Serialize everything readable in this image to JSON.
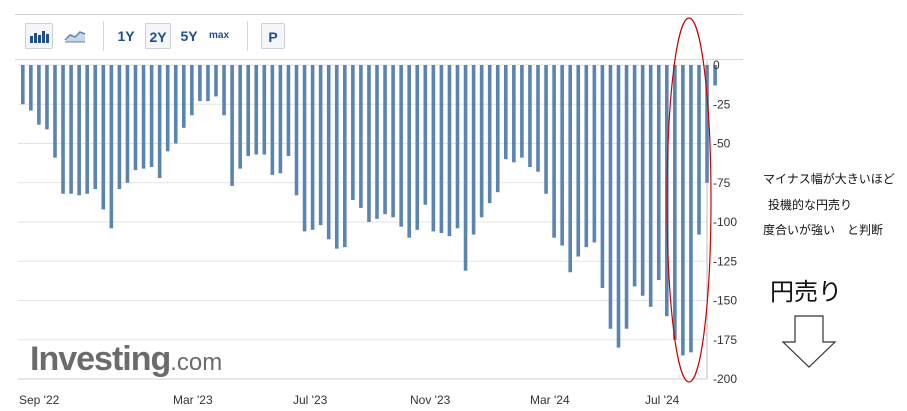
{
  "toolbar": {
    "bar_icon": "bar-chart-icon",
    "line_icon": "area-chart-icon",
    "ranges": [
      "1Y",
      "2Y",
      "5Y",
      "max"
    ],
    "active_range": "2Y",
    "p_button": "P"
  },
  "chart_data": {
    "type": "bar",
    "title": "",
    "xlabel": "",
    "ylabel": "",
    "ylim": [
      -200,
      0
    ],
    "y_ticks": [
      "0",
      "-25",
      "-50",
      "-75",
      "-100",
      "-125",
      "-150",
      "-175",
      "-200"
    ],
    "x_tick_labels": [
      "Sep '22",
      "Mar '23",
      "Jul '23",
      "Nov '23",
      "Mar '24",
      "Jul '24"
    ],
    "bar_color": "#5b84b1",
    "grid": true,
    "values": [
      -25,
      -29,
      -38,
      -41,
      -59,
      -82,
      -82,
      -83,
      -82,
      -79,
      -92,
      -104,
      -79,
      -75,
      -67,
      -66,
      -65,
      -72,
      -55,
      -50,
      -40,
      -32,
      -23,
      -23,
      -20,
      -32,
      -77,
      -66,
      -58,
      -57,
      -57,
      -70,
      -69,
      -58,
      -83,
      -106,
      -105,
      -102,
      -111,
      -117,
      -116,
      -86,
      -91,
      -100,
      -98,
      -95,
      -97,
      -103,
      -110,
      -105,
      -89,
      -106,
      -107,
      -109,
      -104,
      -131,
      -108,
      -97,
      -88,
      -81,
      -60,
      -62,
      -59,
      -65,
      -68,
      -82,
      -110,
      -115,
      -132,
      -122,
      -116,
      -113,
      -142,
      -168,
      -180,
      -168,
      -141,
      -147,
      -154,
      -137,
      -160,
      -175,
      -185,
      -183,
      -108,
      -75,
      -13
    ]
  },
  "annotations": {
    "note_line1": "マイナス幅が大きいほど",
    "note_line2": "投機的な円売り",
    "note_line3": "度合いが強い　と判断",
    "big_label": "円売り",
    "arrow_icon": "down-arrow-icon",
    "highlight_color": "#cc0000"
  },
  "watermark": {
    "main": "Investing",
    "suffix": ".com"
  }
}
